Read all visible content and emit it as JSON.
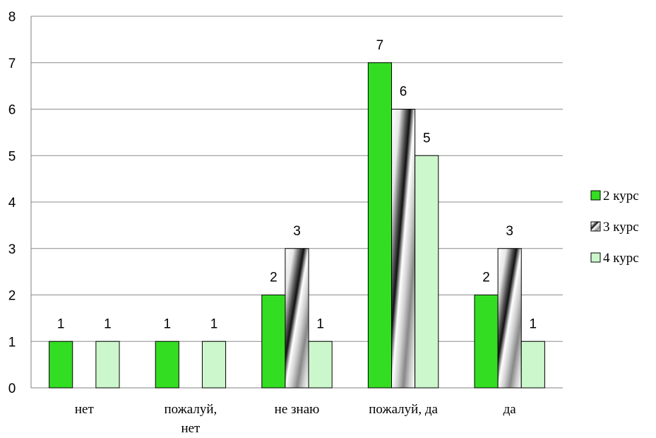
{
  "chart_data": {
    "type": "bar",
    "categories": [
      [
        "нет"
      ],
      [
        "пожалуй,",
        "нет"
      ],
      [
        "не знаю"
      ],
      [
        "пожалуй, да"
      ],
      [
        "да"
      ]
    ],
    "series": [
      {
        "name": "2 курс",
        "values": [
          1,
          1,
          2,
          7,
          2
        ],
        "color": "#33dd22"
      },
      {
        "name": "3 курс",
        "values": [
          0,
          0,
          3,
          6,
          3
        ],
        "color": "#9a9a9a",
        "pattern": "diagonal-metallic"
      },
      {
        "name": "4 курс",
        "values": [
          1,
          1,
          1,
          5,
          1
        ],
        "color": "#ccf7cc"
      }
    ],
    "ylim": [
      0,
      8
    ],
    "yticks": [
      "0",
      "1",
      "2",
      "3",
      "4",
      "5",
      "6",
      "7",
      "8"
    ],
    "title": "",
    "xlabel": "",
    "ylabel": "",
    "grid": true,
    "legend_position": "right"
  }
}
